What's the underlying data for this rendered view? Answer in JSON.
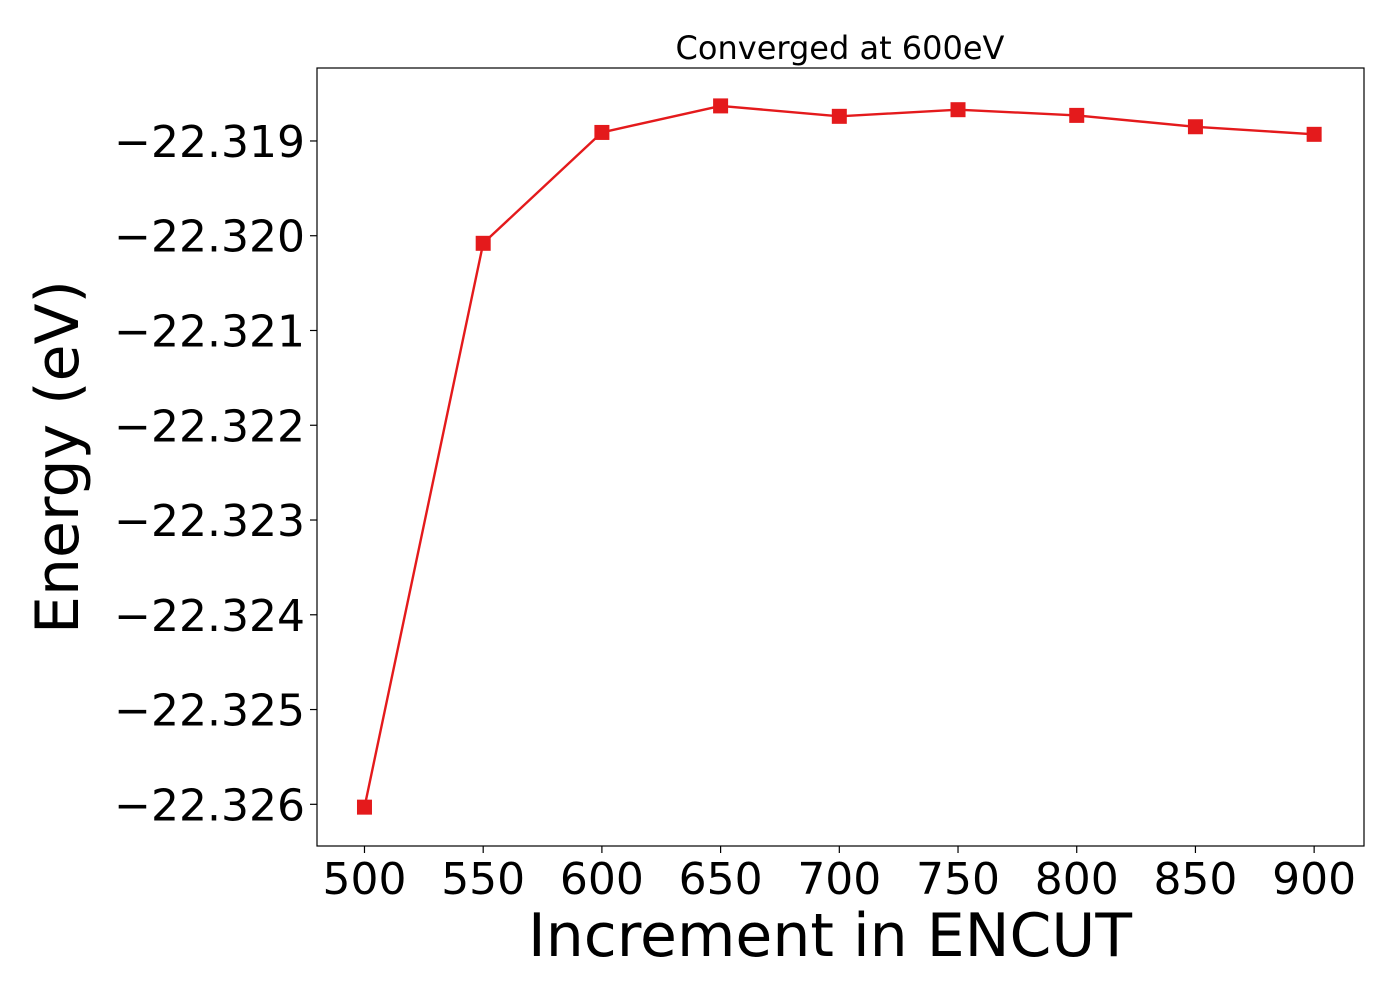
{
  "chart_data": {
    "type": "line",
    "title": "Converged at 600eV",
    "xlabel": "Increment in ENCUT",
    "ylabel": "Energy (eV)",
    "x": [
      500,
      550,
      600,
      650,
      700,
      750,
      800,
      850,
      900
    ],
    "series": [
      {
        "values": [
          -22.32603,
          -22.32008,
          -22.31891,
          -22.31863,
          -22.31874,
          -22.31867,
          -22.31873,
          -22.31885,
          -22.31893
        ],
        "color": "#e41a1c",
        "marker": "square"
      }
    ],
    "xticks": [
      500,
      550,
      600,
      650,
      700,
      750,
      800,
      850,
      900
    ],
    "xtick_labels": [
      "500",
      "550",
      "600",
      "650",
      "700",
      "750",
      "800",
      "850",
      "900"
    ],
    "yticks": [
      -22.326,
      -22.325,
      -22.324,
      -22.323,
      -22.322,
      -22.321,
      -22.32,
      -22.319
    ],
    "ytick_labels": [
      "−22.326",
      "−22.325",
      "−22.324",
      "−22.323",
      "−22.322",
      "−22.321",
      "−22.320",
      "−22.319"
    ],
    "xlim": [
      480,
      921
    ],
    "ylim": [
      -22.32644,
      -22.31823
    ],
    "grid": false,
    "legend": "none"
  }
}
